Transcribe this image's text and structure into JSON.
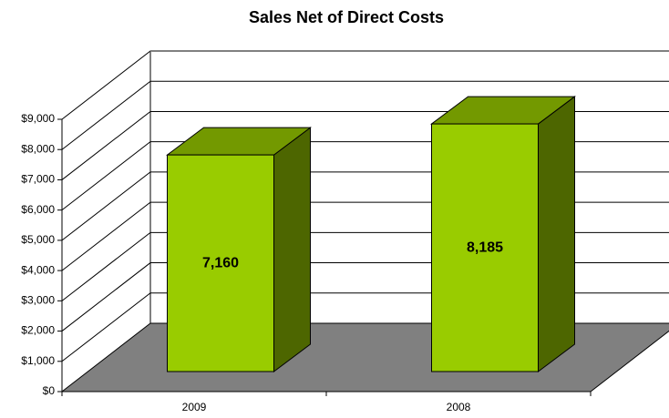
{
  "chart_data": {
    "type": "bar3d",
    "title": "Sales Net of Direct Costs",
    "categories": [
      "2009",
      "2008"
    ],
    "values": [
      7160,
      8185
    ],
    "value_labels": [
      "7,160",
      "8,185"
    ],
    "color": "#99cc00",
    "ylim": [
      0,
      9000
    ],
    "yticks": [
      {
        "value": 0,
        "label": "$0"
      },
      {
        "value": 1000,
        "label": "$1,000"
      },
      {
        "value": 2000,
        "label": "$2,000"
      },
      {
        "value": 3000,
        "label": "$3,000"
      },
      {
        "value": 4000,
        "label": "$4,000"
      },
      {
        "value": 5000,
        "label": "$5,000"
      },
      {
        "value": 6000,
        "label": "$6,000"
      },
      {
        "value": 7000,
        "label": "$7,000"
      },
      {
        "value": 8000,
        "label": "$8,000"
      },
      {
        "value": 9000,
        "label": "$9,000"
      }
    ],
    "grid": true
  }
}
